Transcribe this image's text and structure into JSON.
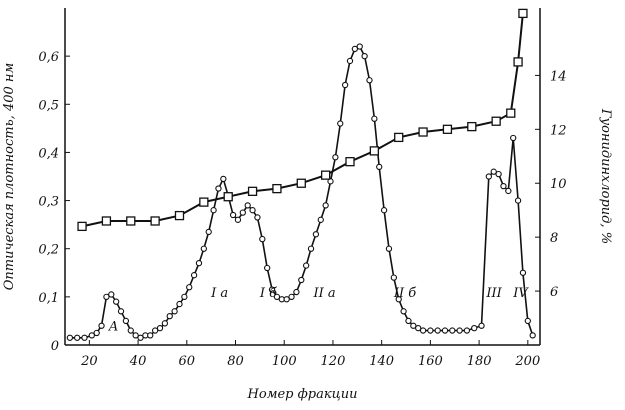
{
  "chart_data": {
    "type": "line",
    "title": "",
    "xlabel": "Номер фракции",
    "ylabel_left": "Оптическая плотность, 400 нм",
    "ylabel_right": "Гуонидинхлорид, %",
    "xlim": [
      10,
      205
    ],
    "ylim_left": [
      0,
      0.7
    ],
    "ylim_right": [
      4,
      16.5
    ],
    "x_ticks": [
      "20",
      "40",
      "60",
      "80",
      "100",
      "120",
      "140",
      "160",
      "180",
      "200"
    ],
    "y_left_ticks": [
      "0",
      "0,1",
      "0,2",
      "0,3",
      "0,4",
      "0,5",
      "0,6"
    ],
    "y_right_ticks": [
      "6",
      "8",
      "10",
      "12",
      "14"
    ],
    "grid": false,
    "series": [
      {
        "marker": "circle",
        "axis": "left",
        "x": [
          12,
          15,
          18,
          21,
          23,
          25,
          27,
          29,
          31,
          33,
          35,
          37,
          39,
          41,
          43,
          45,
          47,
          49,
          51,
          53,
          55,
          57,
          59,
          61,
          63,
          65,
          67,
          69,
          71,
          73,
          75,
          77,
          79,
          81,
          83,
          85,
          87,
          89,
          91,
          93,
          95,
          97,
          99,
          101,
          103,
          105,
          107,
          109,
          111,
          113,
          115,
          117,
          119,
          121,
          123,
          125,
          127,
          129,
          131,
          133,
          135,
          137,
          139,
          141,
          143,
          145,
          147,
          149,
          151,
          153,
          155,
          157,
          160,
          163,
          166,
          169,
          172,
          175,
          178,
          181,
          184,
          186,
          188,
          190,
          192,
          194,
          196,
          198,
          200,
          202
        ],
        "values": [
          0.015,
          0.015,
          0.015,
          0.02,
          0.025,
          0.04,
          0.1,
          0.105,
          0.09,
          0.07,
          0.05,
          0.03,
          0.02,
          0.015,
          0.02,
          0.02,
          0.03,
          0.035,
          0.045,
          0.06,
          0.07,
          0.085,
          0.1,
          0.12,
          0.145,
          0.17,
          0.2,
          0.235,
          0.28,
          0.325,
          0.345,
          0.31,
          0.27,
          0.26,
          0.275,
          0.29,
          0.28,
          0.265,
          0.22,
          0.16,
          0.115,
          0.1,
          0.095,
          0.095,
          0.1,
          0.11,
          0.135,
          0.165,
          0.2,
          0.23,
          0.26,
          0.29,
          0.34,
          0.39,
          0.46,
          0.54,
          0.59,
          0.615,
          0.62,
          0.6,
          0.55,
          0.47,
          0.37,
          0.28,
          0.2,
          0.14,
          0.095,
          0.07,
          0.05,
          0.04,
          0.035,
          0.03,
          0.03,
          0.03,
          0.03,
          0.03,
          0.03,
          0.03,
          0.035,
          0.04,
          0.35,
          0.36,
          0.355,
          0.33,
          0.32,
          0.43,
          0.3,
          0.15,
          0.05,
          0.02
        ]
      },
      {
        "marker": "square",
        "axis": "right",
        "x": [
          17,
          27,
          37,
          47,
          57,
          67,
          77,
          87,
          97,
          107,
          117,
          127,
          137,
          147,
          157,
          167,
          177,
          187,
          193,
          196,
          198
        ],
        "values": [
          8.4,
          8.6,
          8.6,
          8.6,
          8.8,
          9.3,
          9.5,
          9.7,
          9.8,
          10.0,
          10.3,
          10.8,
          11.2,
          11.7,
          11.9,
          12.0,
          12.1,
          12.3,
          12.6,
          14.5,
          16.3
        ]
      }
    ],
    "annotations": [
      "A",
      "I a",
      "I б",
      "II a",
      "II б",
      "III",
      "IV"
    ]
  }
}
